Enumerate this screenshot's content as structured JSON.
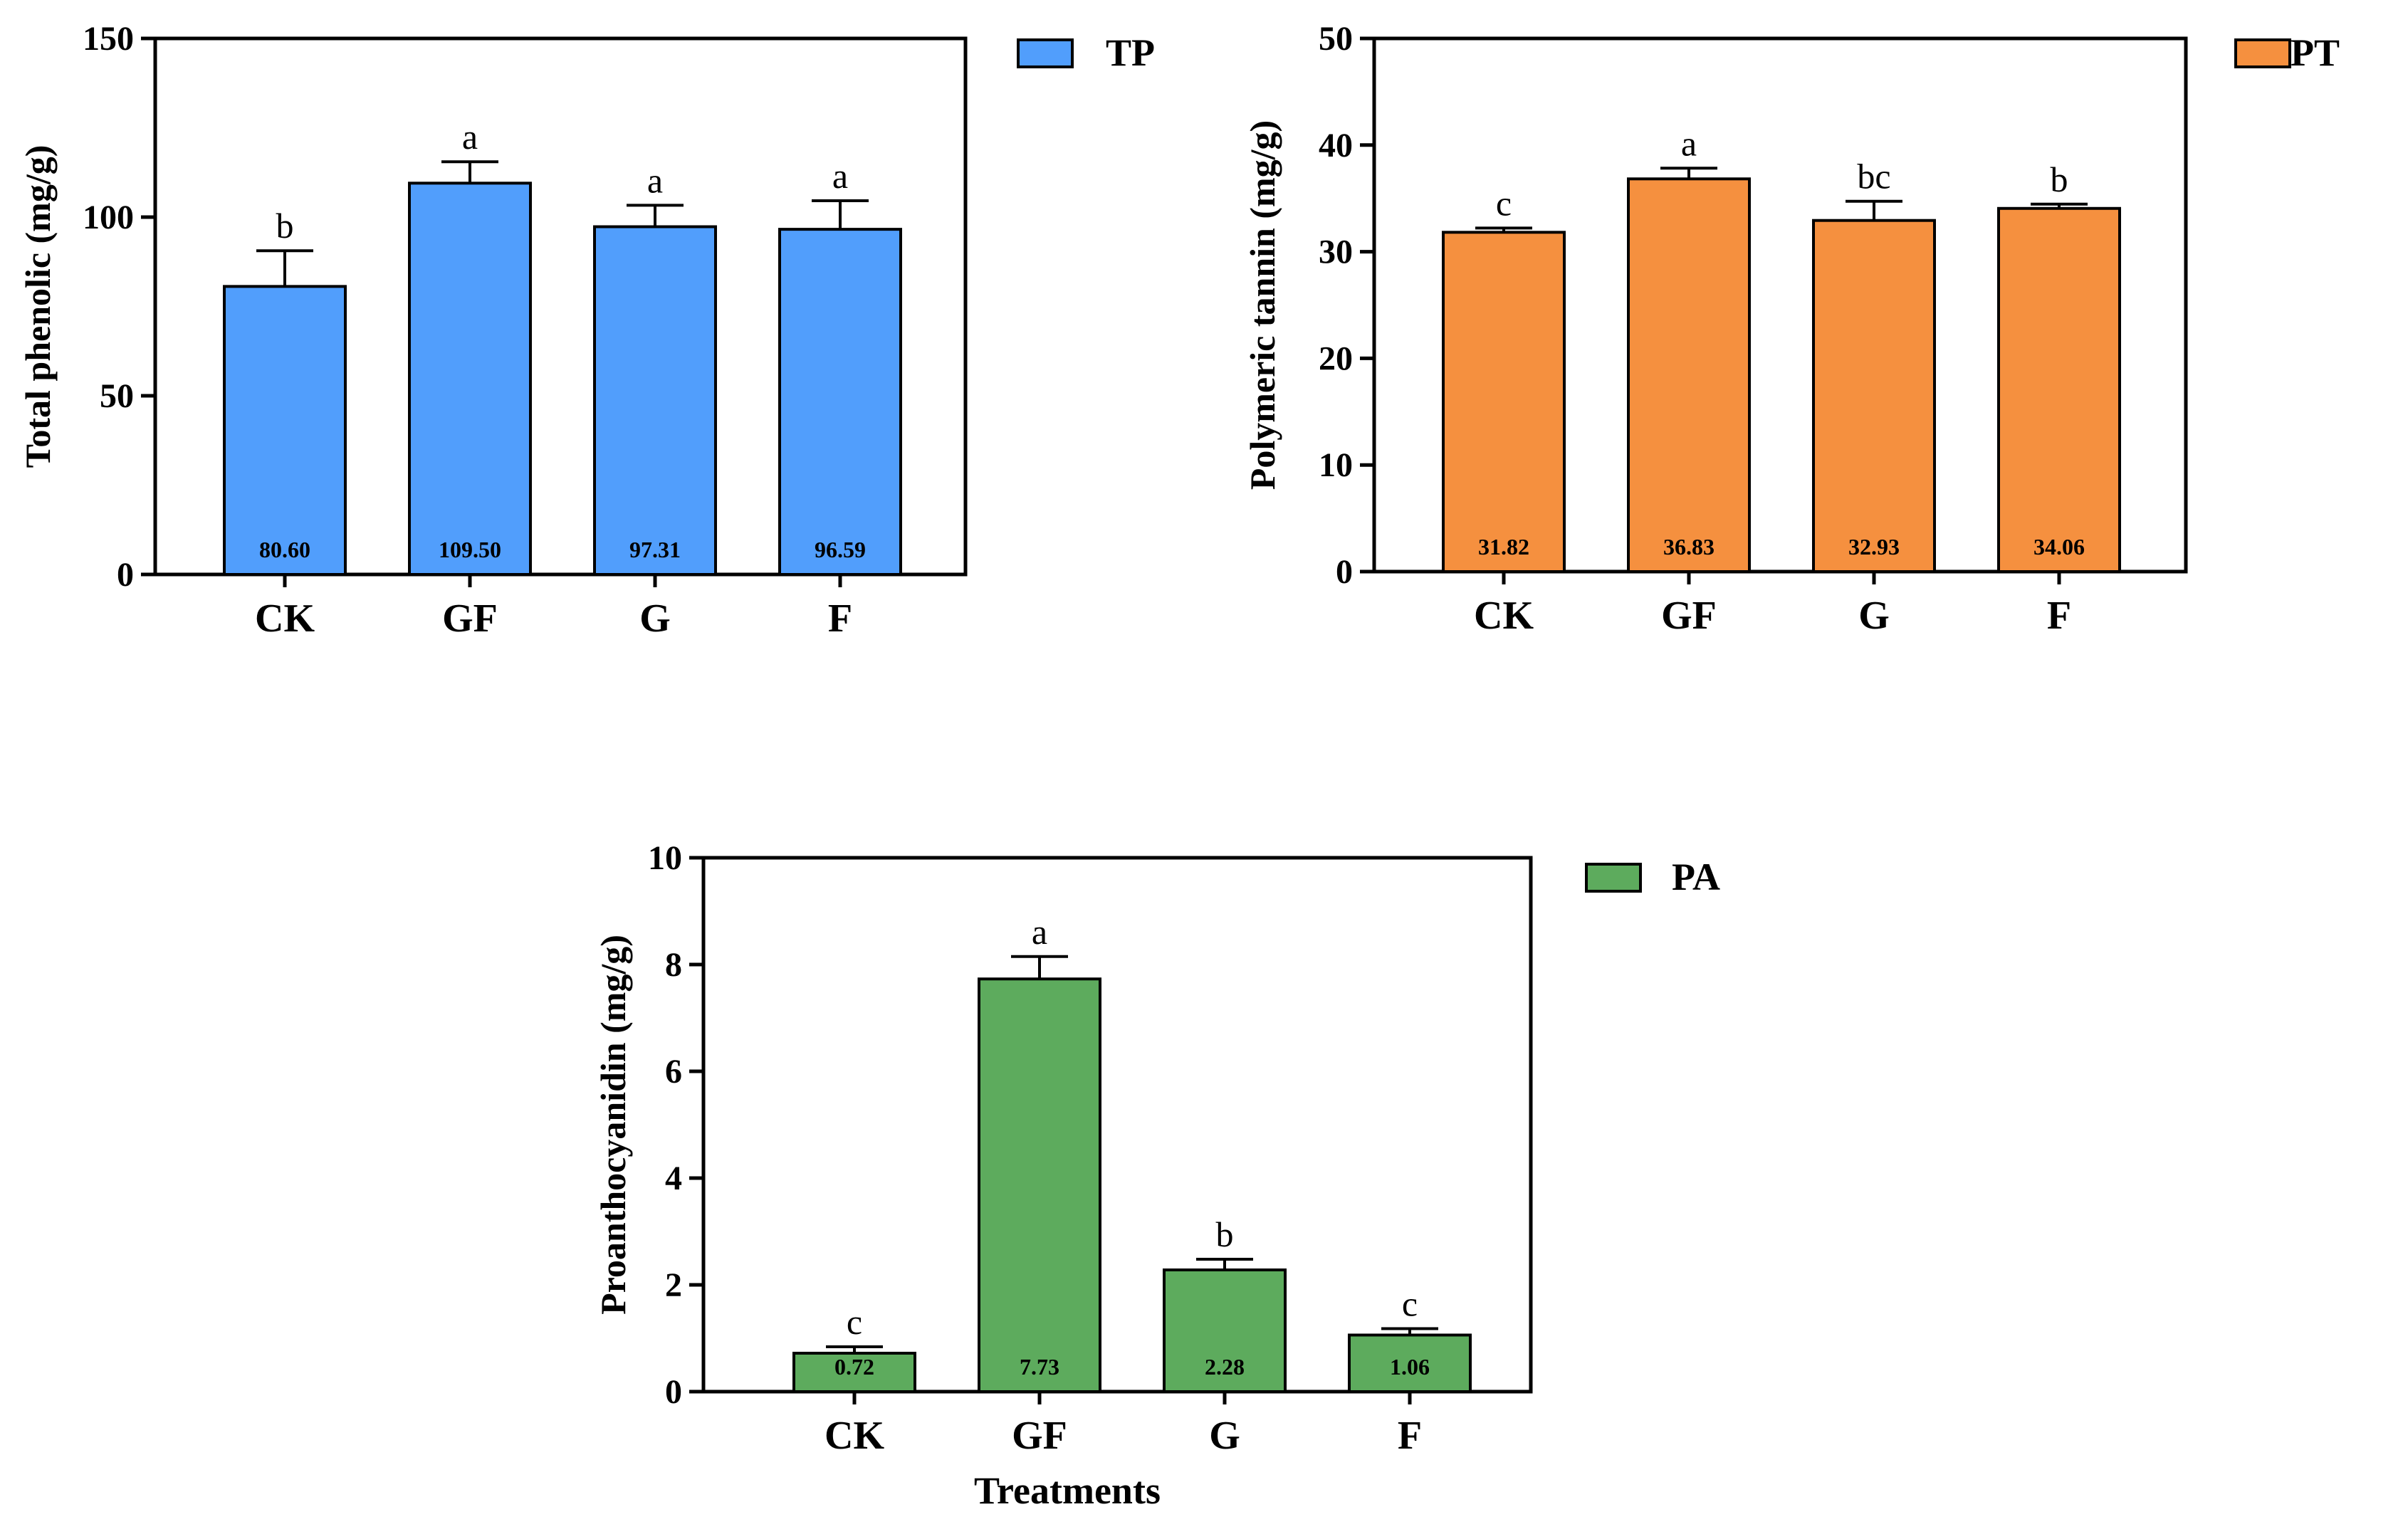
{
  "chart_data": [
    {
      "type": "bar",
      "id": "tp",
      "categories": [
        "CK",
        "GF",
        "G",
        "F"
      ],
      "values": [
        80.6,
        109.5,
        97.31,
        96.59
      ],
      "value_labels": [
        "80.60",
        "109.50",
        "97.31",
        "96.59"
      ],
      "errors": [
        10,
        6,
        6,
        8
      ],
      "significance": [
        "b",
        "a",
        "a",
        "a"
      ],
      "ylabel": "Total phenolic (mg/g)",
      "xlabel": "",
      "ylim": [
        0,
        150
      ],
      "yticks": [
        "0",
        "50",
        "100",
        "150"
      ],
      "ytick_values": [
        0,
        50,
        100,
        150
      ],
      "legend": "TP",
      "color": "#519EFC"
    },
    {
      "type": "bar",
      "id": "pt",
      "categories": [
        "CK",
        "GF",
        "G",
        "F"
      ],
      "values": [
        31.82,
        36.83,
        32.93,
        34.06
      ],
      "value_labels": [
        "31.82",
        "36.83",
        "32.93",
        "34.06"
      ],
      "errors": [
        0.4,
        1.0,
        1.8,
        0.4
      ],
      "significance": [
        "c",
        "a",
        "bc",
        "b"
      ],
      "ylabel": "Polymeric tannin (mg/g)",
      "xlabel": "",
      "ylim": [
        0,
        50
      ],
      "yticks": [
        "0",
        "10",
        "20",
        "30",
        "40",
        "50"
      ],
      "ytick_values": [
        0,
        10,
        20,
        30,
        40,
        50
      ],
      "legend": "PT",
      "color": "#F5903F"
    },
    {
      "type": "bar",
      "id": "pa",
      "categories": [
        "CK",
        "GF",
        "G",
        "F"
      ],
      "values": [
        0.72,
        7.73,
        2.28,
        1.06
      ],
      "value_labels": [
        "0.72",
        "7.73",
        "2.28",
        "1.06"
      ],
      "errors": [
        0.12,
        0.42,
        0.2,
        0.12
      ],
      "significance": [
        "c",
        "a",
        "b",
        "c"
      ],
      "ylabel": "Proanthocyanidin (mg/g)",
      "xlabel": "Treatments",
      "ylim": [
        0,
        10
      ],
      "yticks": [
        "0",
        "2",
        "4",
        "6",
        "8",
        "10"
      ],
      "ytick_values": [
        0,
        2,
        4,
        6,
        8,
        10
      ],
      "legend": "PA",
      "color": "#5DAB5D"
    }
  ]
}
